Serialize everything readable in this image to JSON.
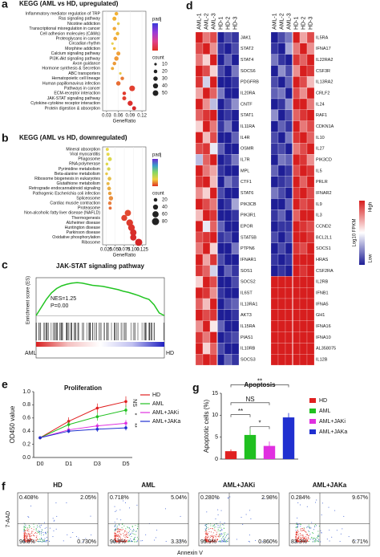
{
  "chart_data": [
    {
      "type": "dot",
      "panel": "a",
      "title": "KEGG (AML vs HD, upregulated)",
      "xlabel": "GeneRatio",
      "categories": [
        "Inflammatory mediator regulation of TRP",
        "Ras signaling pathway",
        "Nicotine addiction",
        "Transcriptional misregulation in cancer",
        "Cell adhesion molecules (CAMs)",
        "Proteoglycans in cancer",
        "Circadian rhythm",
        "Morphine addiction",
        "Calcium signaling pathway",
        "PI3K-Akt signaling pathway",
        "Axon guidance",
        "Hormone synthesis & Secretion",
        "ABC transporters",
        "Hematopoietic cell lineage",
        "Human papillomavirus infection",
        "Pathways in cancer",
        "ECM-receptor interaction",
        "JAK-STAT signaling pathway",
        "Cytokine-cytokine receptor interaction",
        "Protein digestion & absorption"
      ],
      "values": [
        0.055,
        0.05,
        0.06,
        0.05,
        0.058,
        0.052,
        0.045,
        0.05,
        0.06,
        0.055,
        0.05,
        0.045,
        0.065,
        0.07,
        0.06,
        0.095,
        0.075,
        0.075,
        0.09,
        0.1
      ],
      "sizes": [
        20,
        25,
        12,
        20,
        20,
        22,
        10,
        12,
        25,
        30,
        20,
        15,
        10,
        20,
        30,
        50,
        20,
        25,
        40,
        25
      ],
      "colors": [
        "#f2b134",
        "#f2b134",
        "#e8c84a",
        "#f2a83a",
        "#eeb838",
        "#f0a63a",
        "#e8d050",
        "#eec040",
        "#f0a038",
        "#f09a38",
        "#ec9a3a",
        "#eeaa3a",
        "#e8c84a",
        "#e87a36",
        "#e86e34",
        "#e24030",
        "#e03a2e",
        "#e24030",
        "#dc2e2c",
        "#d8282a"
      ],
      "xlim": [
        0.02,
        0.13
      ],
      "xticks": [
        0.03,
        0.06,
        0.09,
        0.12
      ],
      "color_title": "padj",
      "colormap": [
        "#3a3ad8",
        "#9a3ad8",
        "#e0408a",
        "#e03020"
      ],
      "size_title": "count",
      "size_legend": [
        10,
        20,
        30,
        40,
        50
      ]
    },
    {
      "type": "dot",
      "panel": "b",
      "title": "KEGG (AML vs HD, downregulated)",
      "xlabel": "GeneRatio",
      "categories": [
        "Mineral absorption",
        "Viral myocarditis",
        "Phagosome",
        "RNA polymerase",
        "Pyrimidine metabolism",
        "Beta-alanine metabolism",
        "Ribosome biogenesis in eukaryotes",
        "Glutathione metabolism",
        "Retrograde endocannabinoid signaling",
        "Pathogenic Escherichia coli infection",
        "Spliceosome",
        "Cardiac muscle contraction",
        "Proteasome",
        "Non-alcoholic fatty liver disease (NAFLD)",
        "Thermogenesis",
        "Alzheimer disease",
        "Huntington disease",
        "Parkinson disease",
        "Oxidative phosphorylation",
        "Ribosome"
      ],
      "values": [
        0.028,
        0.03,
        0.035,
        0.027,
        0.032,
        0.026,
        0.034,
        0.03,
        0.033,
        0.035,
        0.038,
        0.035,
        0.036,
        0.085,
        0.075,
        0.09,
        0.095,
        0.1,
        0.1,
        0.115
      ],
      "sizes": [
        15,
        15,
        25,
        12,
        18,
        12,
        22,
        15,
        22,
        20,
        30,
        20,
        15,
        60,
        55,
        70,
        70,
        65,
        60,
        80
      ],
      "colors": [
        "#e8d84a",
        "#e6d84c",
        "#dcd84e",
        "#e0d84c",
        "#d8d450",
        "#e8c848",
        "#e6c04a",
        "#e8b848",
        "#eaae44",
        "#e8a040",
        "#ea9040",
        "#e88040",
        "#e87038",
        "#e24a30",
        "#e04430",
        "#dc3a2c",
        "#dc342c",
        "#d82e2a",
        "#d82a2a",
        "#d42426"
      ],
      "xlim": [
        0.015,
        0.135
      ],
      "xticks": [
        0.025,
        {
          "value": 0.05,
          "label": "0.050"
        },
        0.075,
        {
          "value": 0.1,
          "label": "0.100"
        },
        0.125
      ],
      "color_title": "padj",
      "colormap": [
        "#6a2ad0",
        "#3aa0c8",
        "#8ad860",
        "#f0d040",
        "#e03020"
      ],
      "size_title": "count",
      "size_legend": [
        20,
        40,
        60,
        80
      ]
    },
    {
      "type": "gsea",
      "panel": "c",
      "title": "JAK-STAT signaling pathway",
      "ylabel": "Enrichment score (ES)",
      "annotations": [
        "NES=1.25",
        "P=0.00"
      ],
      "left_label": "AML",
      "right_label": "HD",
      "values": [
        0,
        0.15,
        0.3,
        0.42,
        0.5,
        0.55,
        0.58,
        0.6,
        0.61,
        0.6,
        0.58,
        0.56,
        0.55,
        0.54,
        0.52,
        0.5,
        0.48,
        0.45,
        0.43,
        0.4,
        0.37,
        0.33,
        0.3,
        0.2,
        0.05,
        0
      ],
      "ylim": [
        -0.1,
        0.7
      ],
      "color": "#22c422"
    },
    {
      "type": "heatmap",
      "panel": "d",
      "columns": [
        "AML-1",
        "AML-2",
        "AML-3",
        "HD-1",
        "HD-2",
        "HD-3"
      ],
      "legend_high": "High",
      "legend_low": "Low",
      "legend_title": "Log10 FPKM",
      "left": {
        "genes": [
          "JAK1",
          "STAT2",
          "STAT4",
          "SOCS6",
          "PDGFRB",
          "IL20RA",
          "CNTF",
          "STAT1",
          "IL11RA",
          "IL4R",
          "OSMR",
          "IL7R",
          "MPL",
          "CTF1",
          "STAT6",
          "PIK3CB",
          "PIK3R1",
          "EPOR",
          "STAT5B",
          "PTPN6",
          "IFNAR1",
          "SOS1",
          "SOCS2",
          "IL6ST",
          "IL13RA1",
          "AKT3",
          "IL15RA",
          "PIAS1",
          "IL10RB",
          "SOCS3"
        ],
        "values": [
          [
            1,
            0.6,
            0.8,
            -1,
            -0.8,
            -0.9
          ],
          [
            0.8,
            1,
            0.5,
            -0.9,
            -1,
            -0.8
          ],
          [
            0.6,
            0.2,
            1,
            -1,
            -0.7,
            -1
          ],
          [
            1,
            0.8,
            0.2,
            -0.8,
            -1,
            -0.6
          ],
          [
            0.9,
            -0.2,
            1,
            -1,
            -1,
            -0.9
          ],
          [
            0.4,
            1,
            0.7,
            -0.6,
            -1,
            -1
          ],
          [
            1,
            0.5,
            -0.3,
            -1,
            -0.8,
            -0.5
          ],
          [
            0.7,
            0.9,
            1,
            -1,
            -0.9,
            -1
          ],
          [
            0.2,
            1,
            0.6,
            -0.9,
            -0.6,
            -1
          ],
          [
            1,
            0.3,
            0.8,
            -1,
            -1,
            -0.7
          ],
          [
            0.8,
            0.9,
            -0.1,
            -0.7,
            -1,
            -1
          ],
          [
            -0.3,
            0.7,
            1,
            -1,
            -0.9,
            -0.6
          ],
          [
            1,
            0.6,
            0.4,
            -0.9,
            -1,
            -1
          ],
          [
            0.9,
            1,
            0.3,
            -1,
            -0.6,
            -0.8
          ],
          [
            0.5,
            0.2,
            1,
            -0.8,
            -1,
            -1
          ],
          [
            1,
            0.8,
            0.6,
            -1,
            -0.9,
            -0.4
          ],
          [
            0.3,
            1,
            0.9,
            -1,
            -1,
            -0.9
          ],
          [
            1,
            -0.1,
            0.7,
            -0.7,
            -1,
            -1
          ],
          [
            0.8,
            0.9,
            1,
            -0.9,
            -0.8,
            -1
          ],
          [
            0.6,
            1,
            0.2,
            -1,
            -1,
            -0.6
          ],
          [
            1,
            0.4,
            0.9,
            -0.8,
            -1,
            -1
          ],
          [
            0.9,
            0.7,
            -0.2,
            -1,
            -0.7,
            -0.9
          ],
          [
            0.2,
            1,
            0.8,
            -1,
            -1,
            -0.8
          ],
          [
            1,
            0.9,
            0.5,
            -0.9,
            -1,
            -1
          ],
          [
            0.7,
            0.3,
            1,
            -1,
            -0.8,
            -0.7
          ],
          [
            1,
            0.8,
            0.9,
            -1,
            -1,
            -0.9
          ],
          [
            0.5,
            1,
            0.1,
            -0.7,
            -1,
            -1
          ],
          [
            0.9,
            0.6,
            1,
            -1,
            -0.9,
            -0.8
          ],
          [
            1,
            0.2,
            0.7,
            -0.8,
            -1,
            -1
          ],
          [
            0.8,
            1,
            0.9,
            -1,
            -0.7,
            -0.9
          ]
        ]
      },
      "right": {
        "genes": [
          "IL5RA",
          "IFNA17",
          "IL22RA2",
          "CSF3R",
          "IL13RA2",
          "CRLF2",
          "IL24",
          "RAF1",
          "CDKN1A",
          "IL10",
          "IL27",
          "PIK3CD",
          "IL5",
          "PRLR",
          "IFNAR2",
          "IL9",
          "IL3",
          "CCND2",
          "BCL2L1",
          "SOCS1",
          "HRAS",
          "CSF2RA",
          "IL2RB",
          "IFNB1",
          "IFNA5",
          "GH1",
          "IFNA16",
          "IFNA10",
          "AL358075",
          "IL12B"
        ],
        "values": [
          [
            -1,
            -0.8,
            -0.6,
            1,
            0.4,
            0.8
          ],
          [
            -0.9,
            -1,
            -0.4,
            0.6,
            1,
            0.5
          ],
          [
            -0.6,
            -0.9,
            -1,
            0.9,
            0.7,
            1
          ],
          [
            -1,
            -0.5,
            -0.8,
            0.5,
            1,
            0.9
          ],
          [
            -0.8,
            -1,
            -0.7,
            1,
            0.8,
            0.3
          ],
          [
            -0.7,
            -0.6,
            -1,
            0.8,
            0.5,
            1
          ],
          [
            -1,
            -0.9,
            -0.5,
            1,
            1,
            0.6
          ],
          [
            -0.5,
            -1,
            -0.8,
            0.7,
            0.9,
            1
          ],
          [
            -1,
            -0.7,
            -0.9,
            1,
            0.6,
            0.8
          ],
          [
            -0.8,
            -1,
            -0.6,
            0.9,
            1,
            0.7
          ],
          [
            -0.9,
            -0.8,
            -1,
            0.6,
            0.8,
            1
          ],
          [
            -1,
            -0.6,
            -0.7,
            1,
            0.9,
            0.5
          ],
          [
            -0.7,
            -1,
            -0.9,
            0.8,
            1,
            0.9
          ],
          [
            -1,
            -0.9,
            -0.8,
            1,
            0.7,
            1
          ],
          [
            -0.6,
            -0.8,
            -1,
            0.9,
            1,
            0.8
          ],
          [
            -1,
            -1,
            -0.7,
            1,
            0.8,
            0.9
          ],
          [
            -0.9,
            -0.7,
            -1,
            0.7,
            1,
            1
          ],
          [
            -1,
            -0.9,
            -0.9,
            1,
            0.9,
            0.8
          ],
          [
            -0.8,
            -1,
            -0.8,
            1,
            1,
            0.9
          ],
          [
            -1,
            -0.8,
            -1,
            0.9,
            0.8,
            1
          ],
          [
            -0.9,
            -1,
            -0.9,
            1,
            1,
            1
          ],
          [
            -1,
            -0.9,
            -1,
            1,
            0.9,
            1
          ],
          [
            1,
            1,
            1,
            1,
            1,
            1
          ],
          [
            1,
            1,
            1,
            1,
            1,
            1
          ],
          [
            1,
            1,
            1,
            1,
            1,
            1
          ],
          [
            1,
            1,
            1,
            1,
            1,
            1
          ],
          [
            1,
            1,
            1,
            1,
            1,
            1
          ],
          [
            1,
            1,
            1,
            1,
            1,
            1
          ],
          [
            1,
            1,
            1,
            1,
            1,
            1
          ],
          [
            1,
            1,
            1,
            1,
            1,
            1
          ]
        ]
      }
    },
    {
      "type": "line",
      "panel": "e",
      "title": "Proliferation",
      "ylabel": "OD450 value",
      "categories": [
        "D0",
        "D1",
        "D3",
        "D5"
      ],
      "series": [
        {
          "name": "HD",
          "color": "#e02020",
          "values": [
            0.3,
            0.55,
            0.75,
            0.85
          ],
          "errors": [
            0.02,
            0.06,
            0.07,
            0.08
          ]
        },
        {
          "name": "AML",
          "color": "#20c020",
          "values": [
            0.3,
            0.5,
            0.62,
            0.72
          ],
          "errors": [
            0.02,
            0.05,
            0.06,
            0.07
          ]
        },
        {
          "name": "AML+JAKi",
          "color": "#e030e0",
          "values": [
            0.3,
            0.42,
            0.48,
            0.52
          ],
          "errors": [
            0.02,
            0.04,
            0.04,
            0.05
          ]
        },
        {
          "name": "AML+JAKa",
          "color": "#2030d0",
          "values": [
            0.3,
            0.4,
            0.43,
            0.45
          ],
          "errors": [
            0.02,
            0.03,
            0.04,
            0.04
          ]
        }
      ],
      "annotations": [
        "NS",
        "*",
        "**"
      ],
      "ylim": [
        0,
        1
      ],
      "yticks": [
        {
          "value": 0,
          "label": "0.0"
        },
        0.2,
        0.4,
        0.6,
        0.8,
        {
          "value": 1,
          "label": "1.0"
        }
      ]
    },
    {
      "type": "bar",
      "panel": "g",
      "title": "Apoptosis",
      "ylabel": "Apoptotic cells (%)",
      "categories": [
        "HD",
        "AML",
        "AML+JAKi",
        "AML+JAKa"
      ],
      "values": [
        1.8,
        5.5,
        3,
        9.5
      ],
      "errors": [
        0.4,
        1.3,
        1,
        1
      ],
      "colors": [
        "#e02020",
        "#20c020",
        "#e030e0",
        "#2030d0"
      ],
      "annotations": [
        "**",
        "*",
        "NS",
        "**"
      ],
      "ylim": [
        0,
        15
      ],
      "yticks": [
        0,
        5,
        10,
        15
      ]
    },
    {
      "type": "flow",
      "panel": "f",
      "xlabel": "Annexin V",
      "ylabel": "7-AAD",
      "plots": [
        {
          "title": "HD",
          "quadrants": [
            "0.408%",
            "2.05%",
            "96.8%",
            "0.730%"
          ]
        },
        {
          "title": "AML",
          "quadrants": [
            "0.718%",
            "5.04%",
            "90.9%",
            "3.33%"
          ]
        },
        {
          "title": "AML+JAKi",
          "quadrants": [
            "0.280%",
            "2.98%",
            "95.9%",
            "0.860%"
          ]
        },
        {
          "title": "AML+JAKa",
          "quadrants": [
            "0.284%",
            "9.67%",
            "83.3%",
            "6.71%"
          ]
        }
      ]
    }
  ]
}
